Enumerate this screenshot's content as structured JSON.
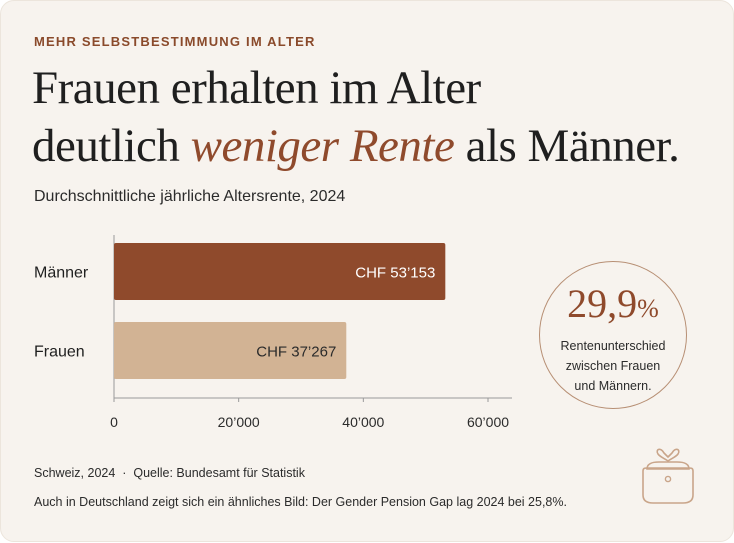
{
  "eyebrow": "MEHR SELBSTBESTIMMUNG IM ALTER",
  "headline": {
    "line1": "Frauen erhalten im Alter",
    "line2_pre": "deutlich ",
    "line2_accent": "weniger Rente",
    "line2_post": " als Männer."
  },
  "colors": {
    "accent": "#8f4a2c",
    "maenner_bar": "#8f4a2c",
    "frauen_bar": "#d2b394",
    "background": "#f7f3ee"
  },
  "chart_data": {
    "type": "bar",
    "orientation": "horizontal",
    "title": "Durchschnittliche jährliche Altersrente, 2024",
    "categories": [
      "Männer",
      "Frauen"
    ],
    "values": [
      53153,
      37267
    ],
    "value_labels": [
      "CHF 53’153",
      "CHF 37’267"
    ],
    "xlim": [
      0,
      60000
    ],
    "x_ticks": [
      0,
      20000,
      40000,
      60000
    ],
    "x_tick_labels": [
      "0",
      "20’000",
      "40’000",
      "60’000"
    ],
    "grid": false,
    "legend": "none"
  },
  "badge": {
    "number": "29,9",
    "unit": "%",
    "text_line1": "Rentenunterschied",
    "text_line2": "zwischen Frauen",
    "text_line3": "und Männern."
  },
  "source": "Schweiz, 2024  ·  Quelle: Bundesamt für Statistik",
  "note": "Auch in Deutschland zeigt sich ein ähnliches Bild: Der Gender Pension Gap lag 2024 bei 25,8%.",
  "icons": {
    "decoration": "purse-icon"
  }
}
